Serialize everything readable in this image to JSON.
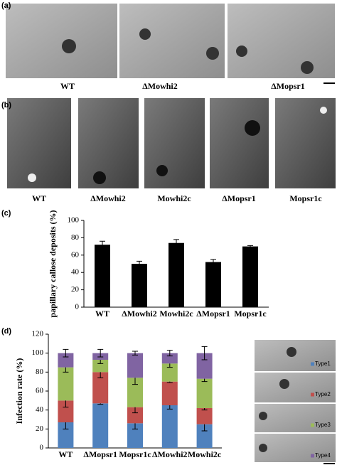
{
  "panel_labels": [
    "(a)",
    "(b)",
    "(c)",
    "(d)"
  ],
  "image_captions_a": [
    "WT",
    "ΔMowhi2",
    "ΔMopsr1"
  ],
  "image_captions_b": [
    "WT",
    "ΔMowhi2",
    "Mowhi2c",
    "ΔMopsr1",
    "Mopsr1c"
  ],
  "chart_data": [
    {
      "type": "bar",
      "ylabel": "papillary callose deposits (%)",
      "categories": [
        "WT",
        "ΔMowhi2",
        "Mowhi2c",
        "ΔMopsr1",
        "Mopsr1c"
      ],
      "values": [
        72,
        50,
        74,
        52,
        70
      ],
      "errors": [
        4,
        3,
        4,
        3,
        1
      ],
      "color": "#000000",
      "ylim": [
        0,
        100
      ],
      "yticks": [
        0,
        20,
        40,
        60,
        80,
        100
      ]
    },
    {
      "type": "stacked-bar",
      "ylabel": "Infection rate (%)",
      "categories": [
        "WT",
        "ΔMopsr1",
        "Mopsr1c",
        "ΔMowhi2",
        "Mowhi2c"
      ],
      "series": [
        {
          "name": "Type1",
          "color": "#4f81bd",
          "values": [
            27,
            47,
            26,
            45,
            25
          ],
          "errors": [
            7,
            1,
            6,
            4,
            7
          ]
        },
        {
          "name": "Type2",
          "color": "#c0504d",
          "values": [
            23,
            33,
            17,
            25,
            17
          ],
          "errors": [
            7,
            6,
            6,
            1,
            2
          ]
        },
        {
          "name": "Type3",
          "color": "#9bbb59",
          "values": [
            35,
            13,
            31,
            19,
            31
          ],
          "errors": [
            5,
            4,
            7,
            4,
            3
          ]
        },
        {
          "name": "Type4",
          "color": "#8064a2",
          "values": [
            15,
            7,
            26,
            11,
            27
          ],
          "errors": [
            4,
            4,
            2,
            3,
            7
          ]
        }
      ],
      "ylim": [
        0,
        120
      ],
      "yticks": [
        0,
        20,
        40,
        60,
        80,
        100,
        120
      ]
    }
  ]
}
